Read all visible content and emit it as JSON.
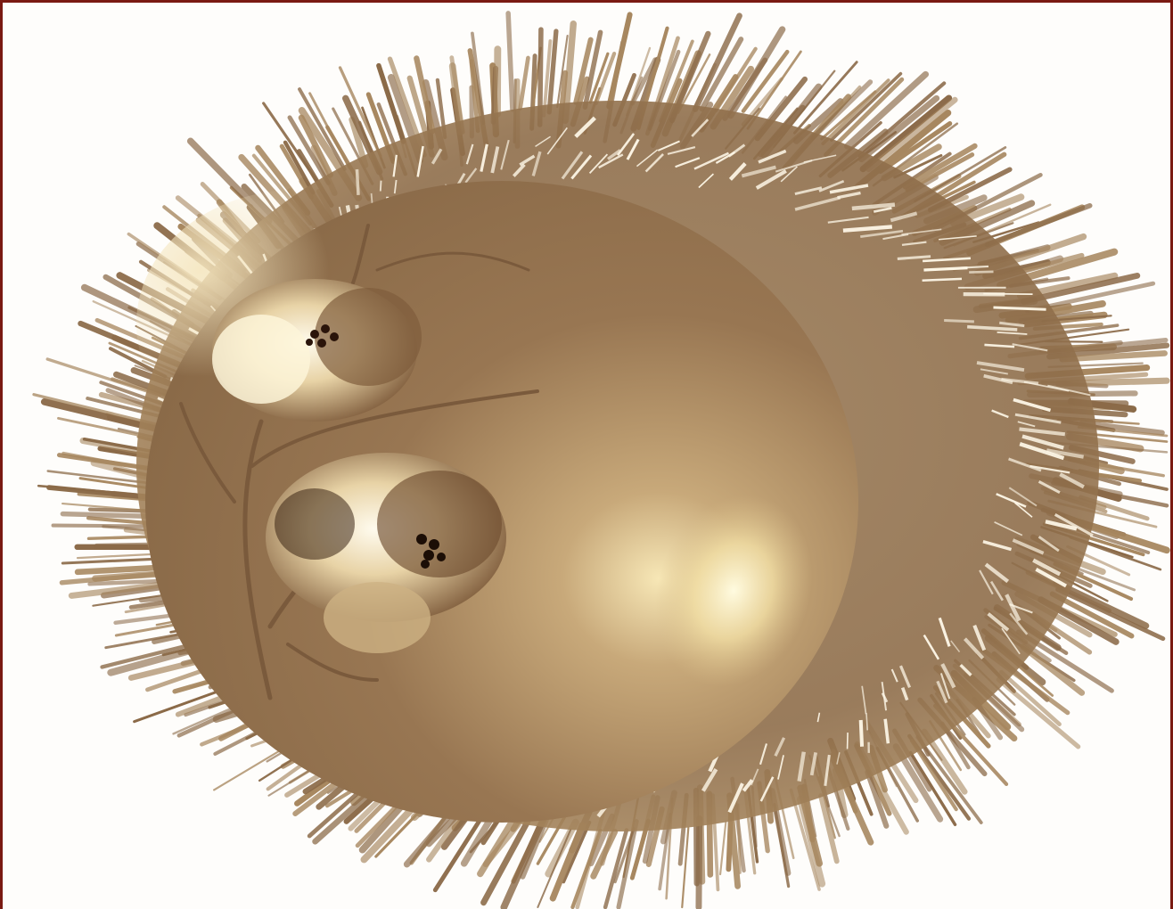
{
  "artwork": {
    "palette": {
      "frame": "#7a1a12",
      "background": "#fefdfb",
      "sepia_dark": "#8b6a48",
      "sepia_mid": "#a7875f",
      "sepia_light": "#d9c39a",
      "highlight": "#fff6cf",
      "flower_dark": "#2a140a"
    },
    "elements": [
      "spiky-oval-halo",
      "sphere",
      "sphere-highlight",
      "flower-upper",
      "flower-lower",
      "flower-stems"
    ]
  }
}
